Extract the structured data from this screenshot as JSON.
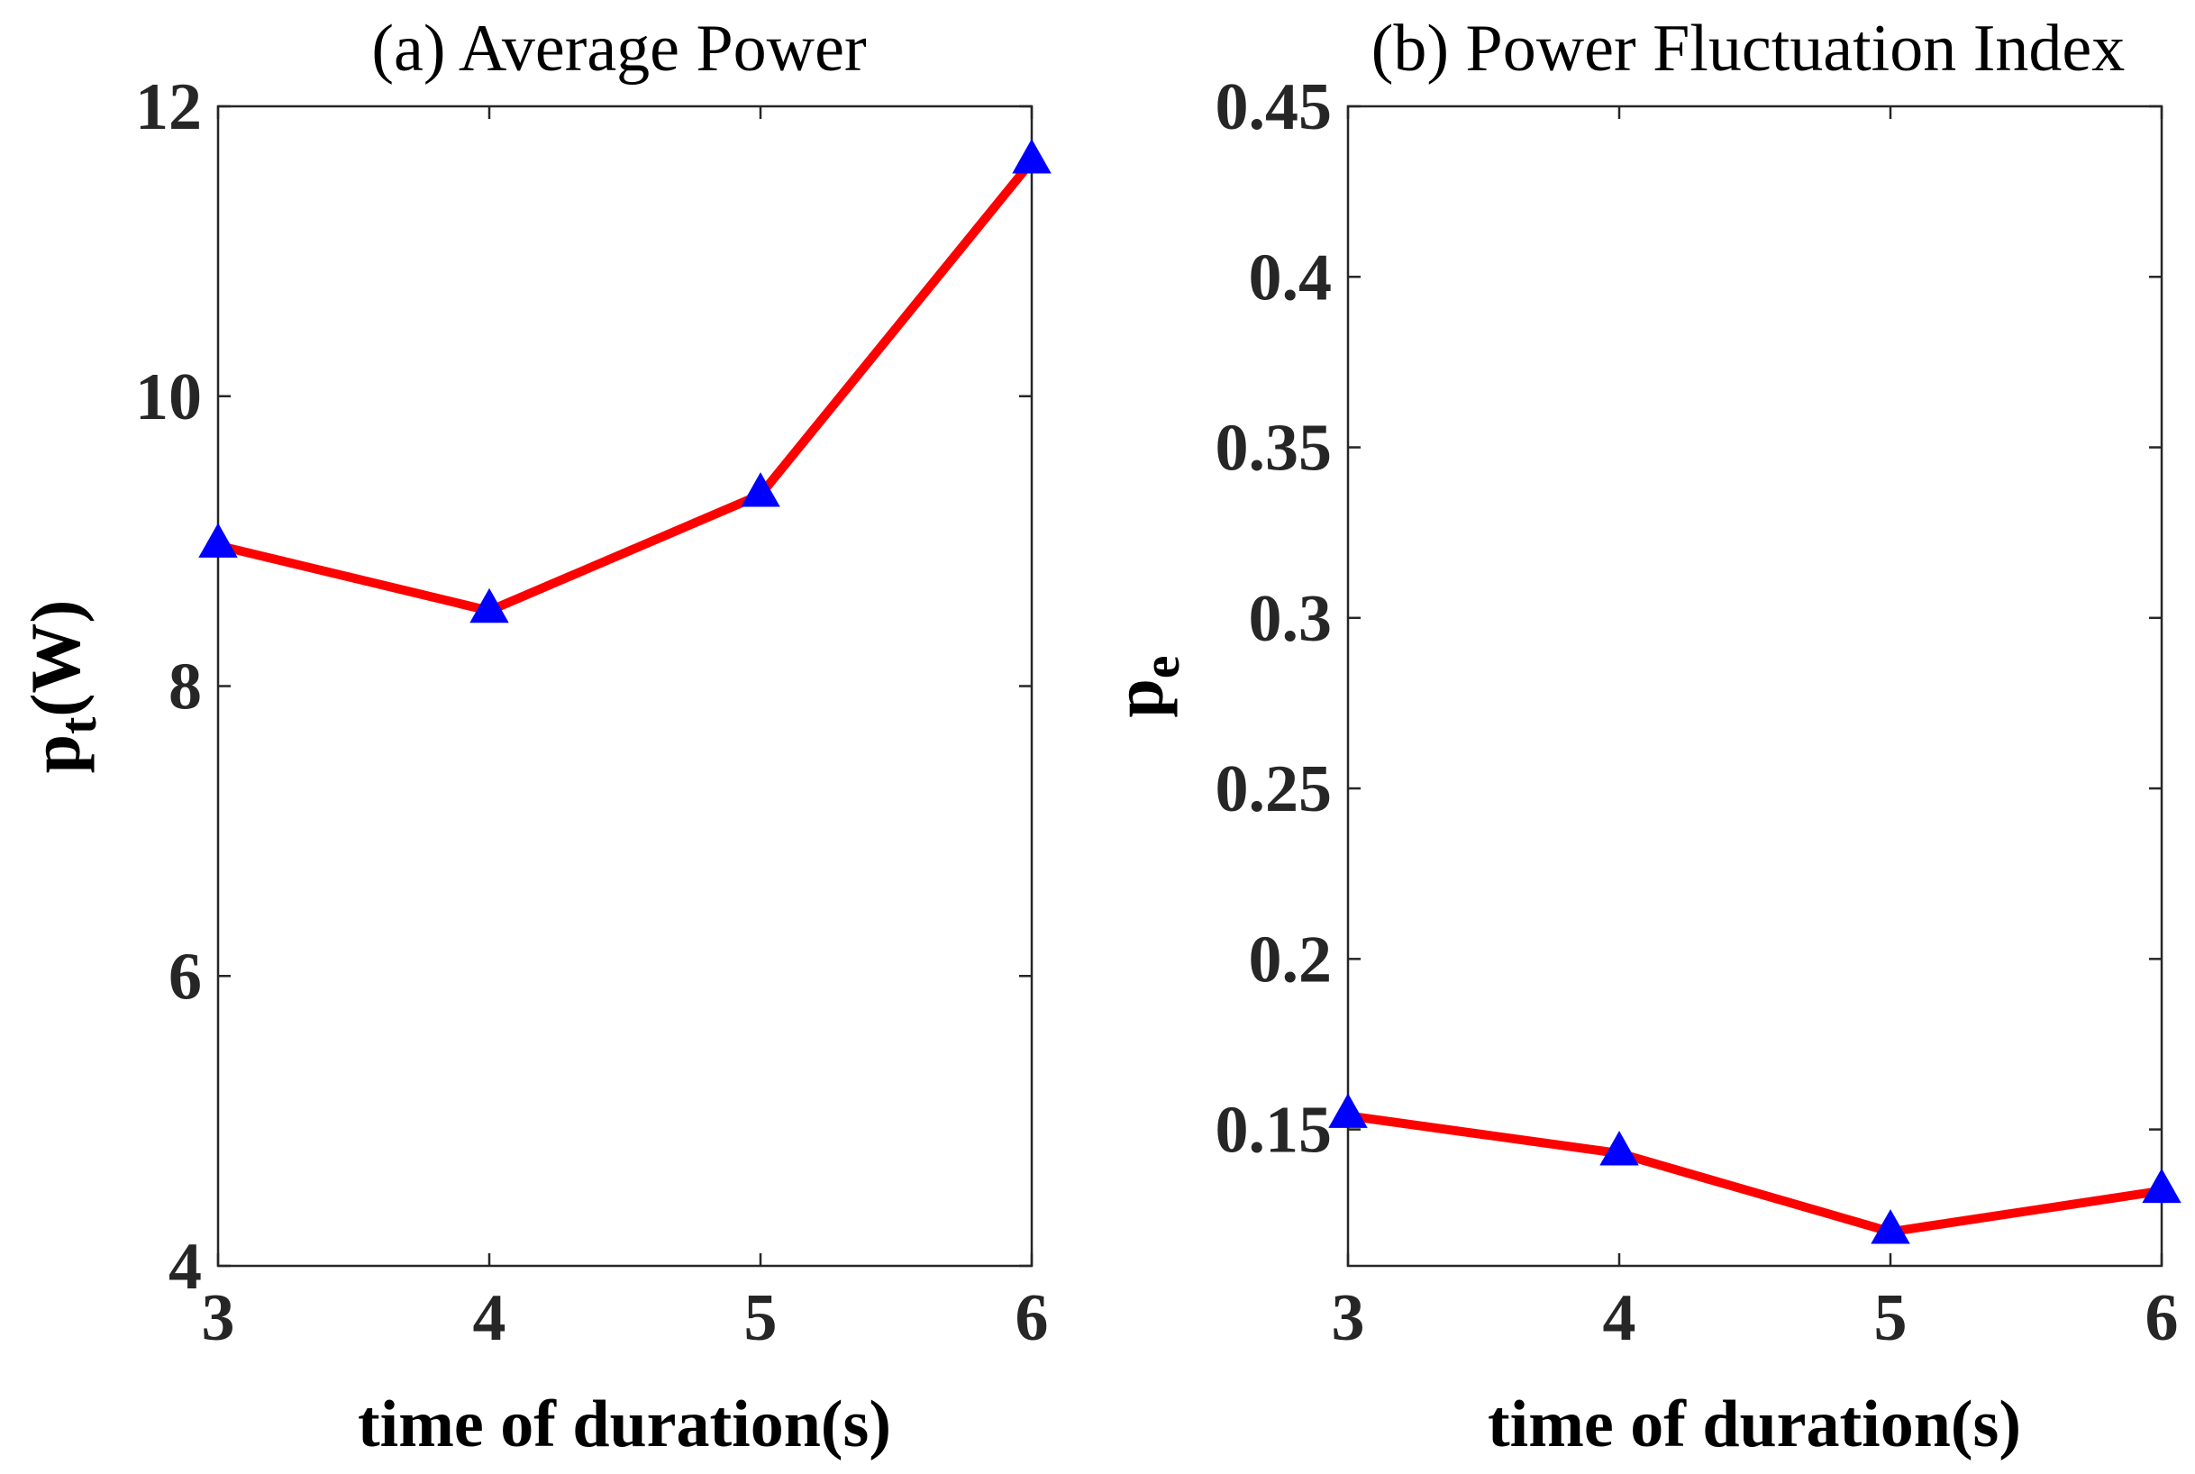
{
  "chart_data": [
    {
      "type": "line",
      "title": "(a) Average Power",
      "xlabel": "time of duration(s)",
      "ylabel_main": "p",
      "ylabel_sub": "t",
      "ylabel_rest": "(W)",
      "x": [
        3,
        4,
        5,
        6
      ],
      "series": [
        {
          "name": "Average Power",
          "values": [
            8.97,
            8.52,
            9.32,
            11.62
          ]
        }
      ],
      "xlim": [
        3,
        6
      ],
      "ylim": [
        4,
        12
      ],
      "xticks": [
        3,
        4,
        5,
        6
      ],
      "yticks": [
        4,
        6,
        8,
        10,
        12
      ],
      "xtick_labels": [
        "3",
        "4",
        "5",
        "6"
      ],
      "ytick_labels": [
        "4",
        "6",
        "8",
        "10",
        "12"
      ],
      "line_color": "#ff0000",
      "marker_color": "#0000ff",
      "marker": "triangle",
      "grid": false
    },
    {
      "type": "line",
      "title": "(b) Power Fluctuation Index",
      "xlabel": "time of duration(s)",
      "ylabel_main": "p",
      "ylabel_sub": "e",
      "ylabel_rest": "",
      "x": [
        3,
        4,
        5,
        6
      ],
      "series": [
        {
          "name": "Power Fluctuation Index",
          "values": [
            0.154,
            0.143,
            0.12,
            0.132
          ]
        }
      ],
      "xlim": [
        3,
        6
      ],
      "ylim": [
        0.11,
        0.45
      ],
      "xticks": [
        3,
        4,
        5,
        6
      ],
      "yticks": [
        0.15,
        0.2,
        0.25,
        0.3,
        0.35,
        0.4,
        0.45
      ],
      "xtick_labels": [
        "3",
        "4",
        "5",
        "6"
      ],
      "ytick_labels": [
        "0.15",
        "0.2",
        "0.25",
        "0.3",
        "0.35",
        "0.4",
        "0.45"
      ],
      "line_color": "#ff0000",
      "marker_color": "#0000ff",
      "marker": "triangle",
      "grid": false
    }
  ]
}
